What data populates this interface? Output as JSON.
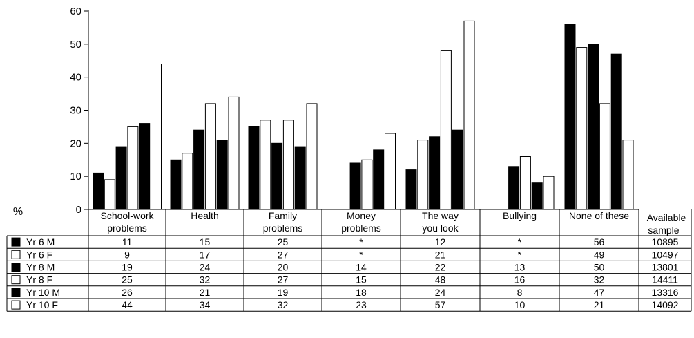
{
  "chart_data": {
    "type": "bar",
    "ylabel": "%",
    "ylim": [
      0,
      60
    ],
    "yticks": [
      0,
      10,
      20,
      30,
      40,
      50,
      60
    ],
    "categories": [
      [
        "School-work",
        "problems"
      ],
      [
        "Health",
        ""
      ],
      [
        "Family",
        "problems"
      ],
      [
        "Money",
        "problems"
      ],
      [
        "The way",
        "you look"
      ],
      [
        "Bullying",
        ""
      ],
      [
        "None of these",
        ""
      ]
    ],
    "series": [
      {
        "name": "Yr 6 M",
        "fill": "#000000",
        "values": [
          11,
          15,
          25,
          null,
          12,
          null,
          56
        ],
        "cells": [
          "11",
          "15",
          "25",
          "*",
          "12",
          "*",
          "56"
        ],
        "sample": "10895"
      },
      {
        "name": "Yr 6 F",
        "fill": "#ffffff",
        "values": [
          9,
          17,
          27,
          null,
          21,
          null,
          49
        ],
        "cells": [
          "9",
          "17",
          "27",
          "*",
          "21",
          "*",
          "49"
        ],
        "sample": "10497"
      },
      {
        "name": "Yr 8 M",
        "fill": "#000000",
        "values": [
          19,
          24,
          20,
          14,
          22,
          13,
          50
        ],
        "cells": [
          "19",
          "24",
          "20",
          "14",
          "22",
          "13",
          "50"
        ],
        "sample": "13801"
      },
      {
        "name": "Yr 8 F",
        "fill": "#ffffff",
        "values": [
          25,
          32,
          27,
          15,
          48,
          16,
          32
        ],
        "cells": [
          "25",
          "32",
          "27",
          "15",
          "48",
          "16",
          "32"
        ],
        "sample": "14411"
      },
      {
        "name": "Yr 10 M",
        "fill": "#000000",
        "values": [
          26,
          21,
          19,
          18,
          24,
          8,
          47
        ],
        "cells": [
          "26",
          "21",
          "19",
          "18",
          "24",
          "8",
          "47"
        ],
        "sample": "13316"
      },
      {
        "name": "Yr 10 F",
        "fill": "#ffffff",
        "values": [
          44,
          34,
          32,
          23,
          57,
          10,
          21
        ],
        "cells": [
          "44",
          "34",
          "32",
          "23",
          "57",
          "10",
          "21"
        ],
        "sample": "14092"
      }
    ],
    "sample_header": [
      "Available",
      "sample"
    ],
    "grid": false,
    "legend": "table-left"
  }
}
